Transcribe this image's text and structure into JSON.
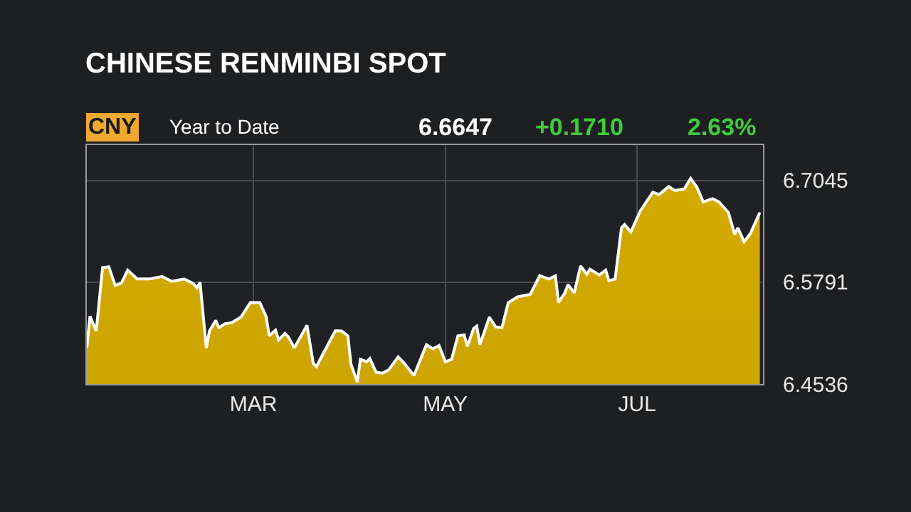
{
  "chart_data": {
    "type": "area",
    "title": "CHINESE RENMINBI SPOT",
    "subtitle": "Year to Date",
    "annotations": [
      "CNY",
      "6.6647",
      "+0.1710",
      "2.63%"
    ],
    "x": [
      "--01-08",
      "--01-09",
      "--01-11",
      "--01-13",
      "--01-15",
      "--01-17",
      "--01-19",
      "--01-21",
      "--01-24",
      "--01-28",
      "--02-01",
      "--02-04",
      "--02-08",
      "--02-11",
      "--02-12",
      "--02-13",
      "--02-15",
      "--02-16",
      "--02-18",
      "--02-19",
      "--02-21",
      "--02-23",
      "--02-26",
      "--02-29",
      "--03-03",
      "--03-05",
      "--03-06",
      "--03-08",
      "--03-09",
      "--03-11",
      "--03-12",
      "--03-14",
      "--03-18",
      "--03-20",
      "--03-21",
      "--03-23",
      "--03-27",
      "--03-29",
      "--03-31",
      "--04-01",
      "--04-03",
      "--04-04",
      "--04-06",
      "--04-07",
      "--04-09",
      "--04-11",
      "--04-13",
      "--04-16",
      "--04-18",
      "--04-21",
      "--04-25",
      "--04-27",
      "--04-29",
      "--05-01",
      "--05-03",
      "--05-05",
      "--05-07",
      "--05-08",
      "--05-10",
      "--05-11",
      "--05-12",
      "--05-15",
      "--05-17",
      "--05-19",
      "--05-21",
      "--05-24",
      "--05-28",
      "--05-31",
      "--06-03",
      "--06-05",
      "--06-06",
      "--06-08",
      "--06-09",
      "--06-11",
      "--06-13",
      "--06-15",
      "--06-16",
      "--06-19",
      "--06-21",
      "--06-22",
      "--06-24",
      "--06-26",
      "--06-27",
      "--06-29",
      "--07-02",
      "--07-06",
      "--07-08",
      "--07-11",
      "--07-13",
      "--07-16",
      "--07-18",
      "--07-20",
      "--07-22",
      "--07-25",
      "--07-27",
      "--07-30",
      "--08-01",
      "--08-02",
      "--08-04",
      "--08-06",
      "--08-09"
    ],
    "series": [
      {
        "color": "#d4aa00",
        "values": [
          6.498,
          6.537,
          6.519,
          6.597,
          6.598,
          6.575,
          6.578,
          6.594,
          6.583,
          6.583,
          6.586,
          6.58,
          6.583,
          6.577,
          6.572,
          6.579,
          6.498,
          6.519,
          6.532,
          6.523,
          6.528,
          6.529,
          6.536,
          6.554,
          6.554,
          6.537,
          6.513,
          6.52,
          6.508,
          6.516,
          6.512,
          6.498,
          6.526,
          6.479,
          6.475,
          6.49,
          6.519,
          6.519,
          6.513,
          6.478,
          6.456,
          6.484,
          6.481,
          6.485,
          6.468,
          6.467,
          6.471,
          6.487,
          6.479,
          6.464,
          6.502,
          6.497,
          6.501,
          6.481,
          6.484,
          6.513,
          6.514,
          6.5,
          6.522,
          6.525,
          6.502,
          6.536,
          6.524,
          6.523,
          6.554,
          6.561,
          6.564,
          6.587,
          6.583,
          6.587,
          6.554,
          6.566,
          6.576,
          6.566,
          6.599,
          6.589,
          6.595,
          6.588,
          6.594,
          6.581,
          6.583,
          6.646,
          6.65,
          6.641,
          6.667,
          6.69,
          6.687,
          6.697,
          6.692,
          6.694,
          6.707,
          6.696,
          6.678,
          6.682,
          6.678,
          6.665,
          6.638,
          6.646,
          6.629,
          6.639,
          6.665
        ]
      }
    ],
    "xlim": [
      "--01-08",
      "--08-10"
    ],
    "xticks": [
      {
        "value": "--03-01",
        "label": "MAR"
      },
      {
        "value": "--05-01",
        "label": "MAY"
      },
      {
        "value": "--07-01",
        "label": "JUL"
      }
    ],
    "ylim": [
      6.4536,
      6.748
    ],
    "yticks": [
      6.4536,
      6.5791,
      6.7045
    ],
    "grid": true,
    "legend": false
  }
}
